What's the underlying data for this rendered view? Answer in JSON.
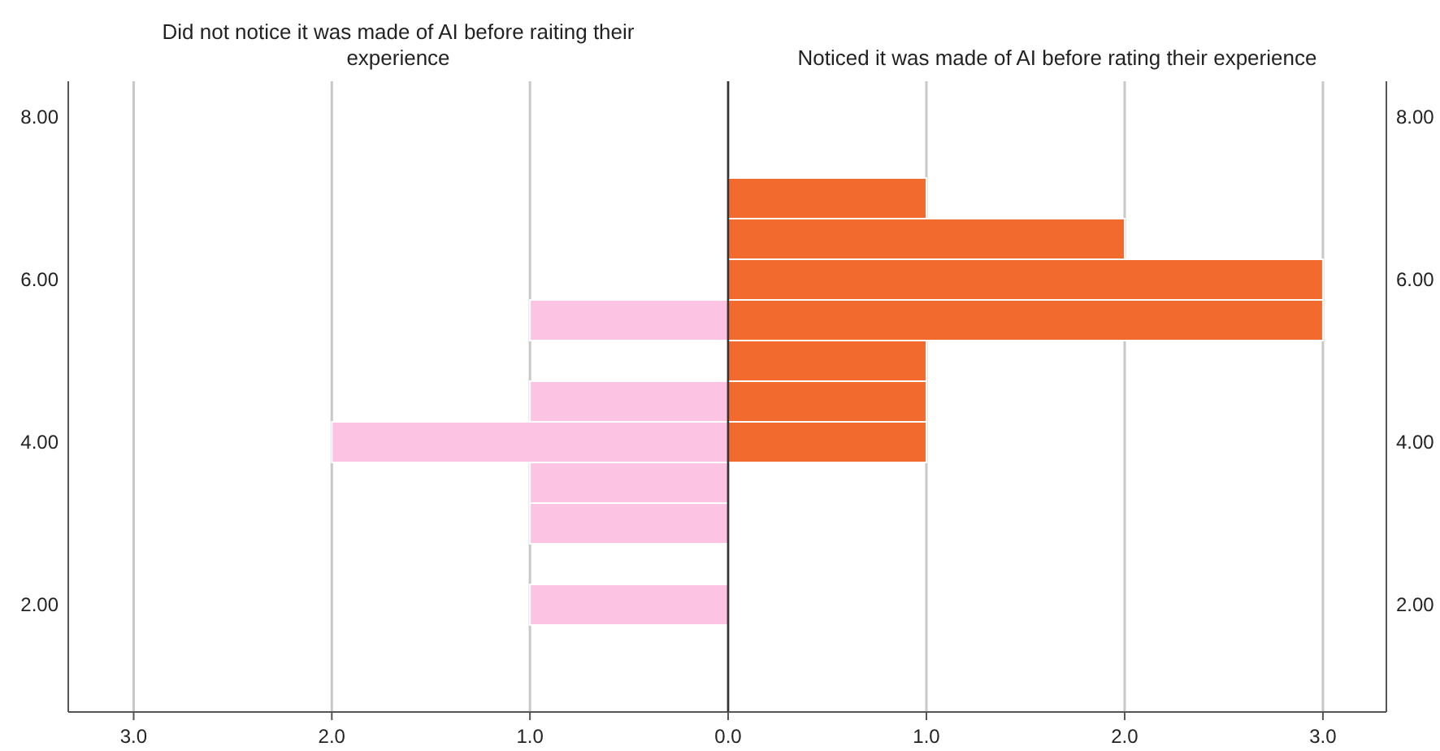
{
  "chart_data": [
    {
      "type": "histogram",
      "orientation": "horizontal",
      "title": "Did not notice it was made of AI before raiting their experience",
      "bins": [
        1.75,
        2.25,
        2.75,
        3.25,
        3.75,
        4.25,
        4.75,
        5.25,
        5.75,
        6.25,
        6.75,
        7.25
      ],
      "values": [
        1,
        0,
        1,
        1,
        2,
        1,
        0,
        1,
        0,
        0,
        0
      ],
      "color": "#fdc3e3",
      "xlim": [
        3.33,
        0
      ],
      "xticks": [
        {
          "value": 3,
          "label": "3.0"
        },
        {
          "value": 2,
          "label": "2.0"
        },
        {
          "value": 1,
          "label": "1.0"
        }
      ],
      "ylim": [
        0.68,
        8.44
      ],
      "yticks": [
        {
          "value": 2,
          "label": "2.00"
        },
        {
          "value": 4,
          "label": "4.00"
        },
        {
          "value": 6,
          "label": "6.00"
        },
        {
          "value": 8,
          "label": "8.00"
        }
      ],
      "grid": "x"
    },
    {
      "type": "histogram",
      "orientation": "horizontal",
      "title": "Noticed it was made of AI before rating their experience",
      "bins": [
        1.75,
        2.25,
        2.75,
        3.25,
        3.75,
        4.25,
        4.75,
        5.25,
        5.75,
        6.25,
        6.75,
        7.25
      ],
      "values": [
        0,
        0,
        0,
        0,
        1,
        1,
        1,
        3,
        3,
        2,
        1
      ],
      "color": "#f26a2d",
      "xlim": [
        0,
        3.32
      ],
      "xticks": [
        {
          "value": 0,
          "label": "0.0"
        },
        {
          "value": 1,
          "label": "1.0"
        },
        {
          "value": 2,
          "label": "2.0"
        },
        {
          "value": 3,
          "label": "3.0"
        }
      ],
      "ylim": [
        0.68,
        8.44
      ],
      "yticks": [
        {
          "value": 2,
          "label": "2.00"
        },
        {
          "value": 4,
          "label": "4.00"
        },
        {
          "value": 6,
          "label": "6.00"
        },
        {
          "value": 8,
          "label": "8.00"
        }
      ],
      "grid": "x"
    }
  ]
}
